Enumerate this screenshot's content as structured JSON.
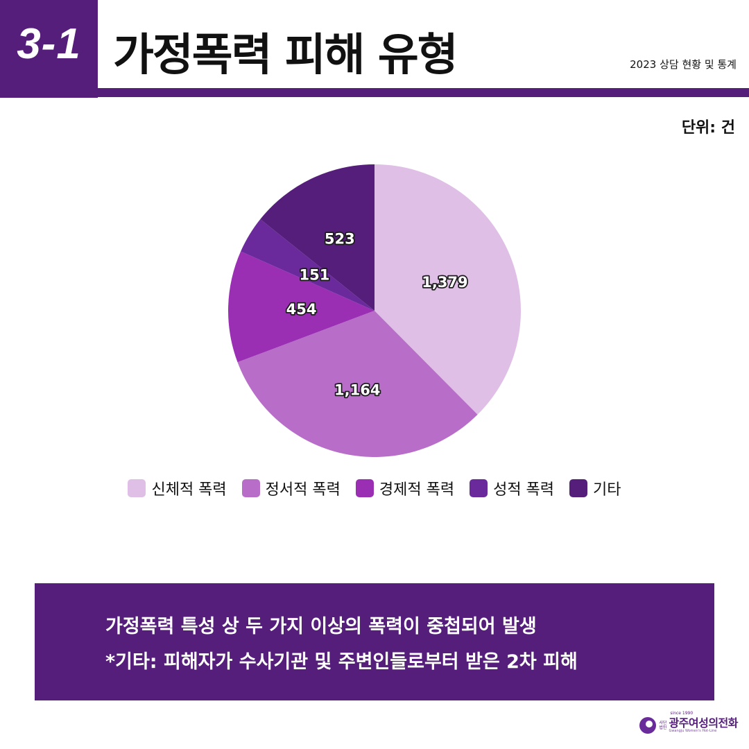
{
  "header": {
    "number": "3-1",
    "title": "가정폭력 피해 유형",
    "subtitle": "2023 상담 현황 및 통계",
    "unit": "단위: 건"
  },
  "chart_data": {
    "type": "pie",
    "start_angle_deg": 0,
    "direction": "clockwise",
    "slices": [
      {
        "label": "신체적 폭력",
        "value": 1379,
        "display": "1,379",
        "color": "#dfbfe6"
      },
      {
        "label": "정서적 폭력",
        "value": 1164,
        "display": "1,164",
        "color": "#b86ec9"
      },
      {
        "label": "경제적 폭력",
        "value": 454,
        "display": "454",
        "color": "#9a2fb4"
      },
      {
        "label": "성적 폭력",
        "value": 151,
        "display": "151",
        "color": "#6b2a9c"
      },
      {
        "label": "기타",
        "value": 523,
        "display": "523",
        "color": "#541e7a"
      }
    ],
    "legend_position": "bottom"
  },
  "notes": {
    "line1": "가정폭력 특성 상 두 가지 이상의 폭력이 중첩되어 발생",
    "line2": "*기타: 피해자가 수사기관 및 주변인들로부터 받은 2차 피해"
  },
  "logo": {
    "since": "since 1990",
    "corp": [
      "사단",
      "법인"
    ],
    "name": "광주여성의전화",
    "english": "Gwangju Women's Hot-Line"
  },
  "colors": {
    "brand_purple": "#541e7a"
  }
}
